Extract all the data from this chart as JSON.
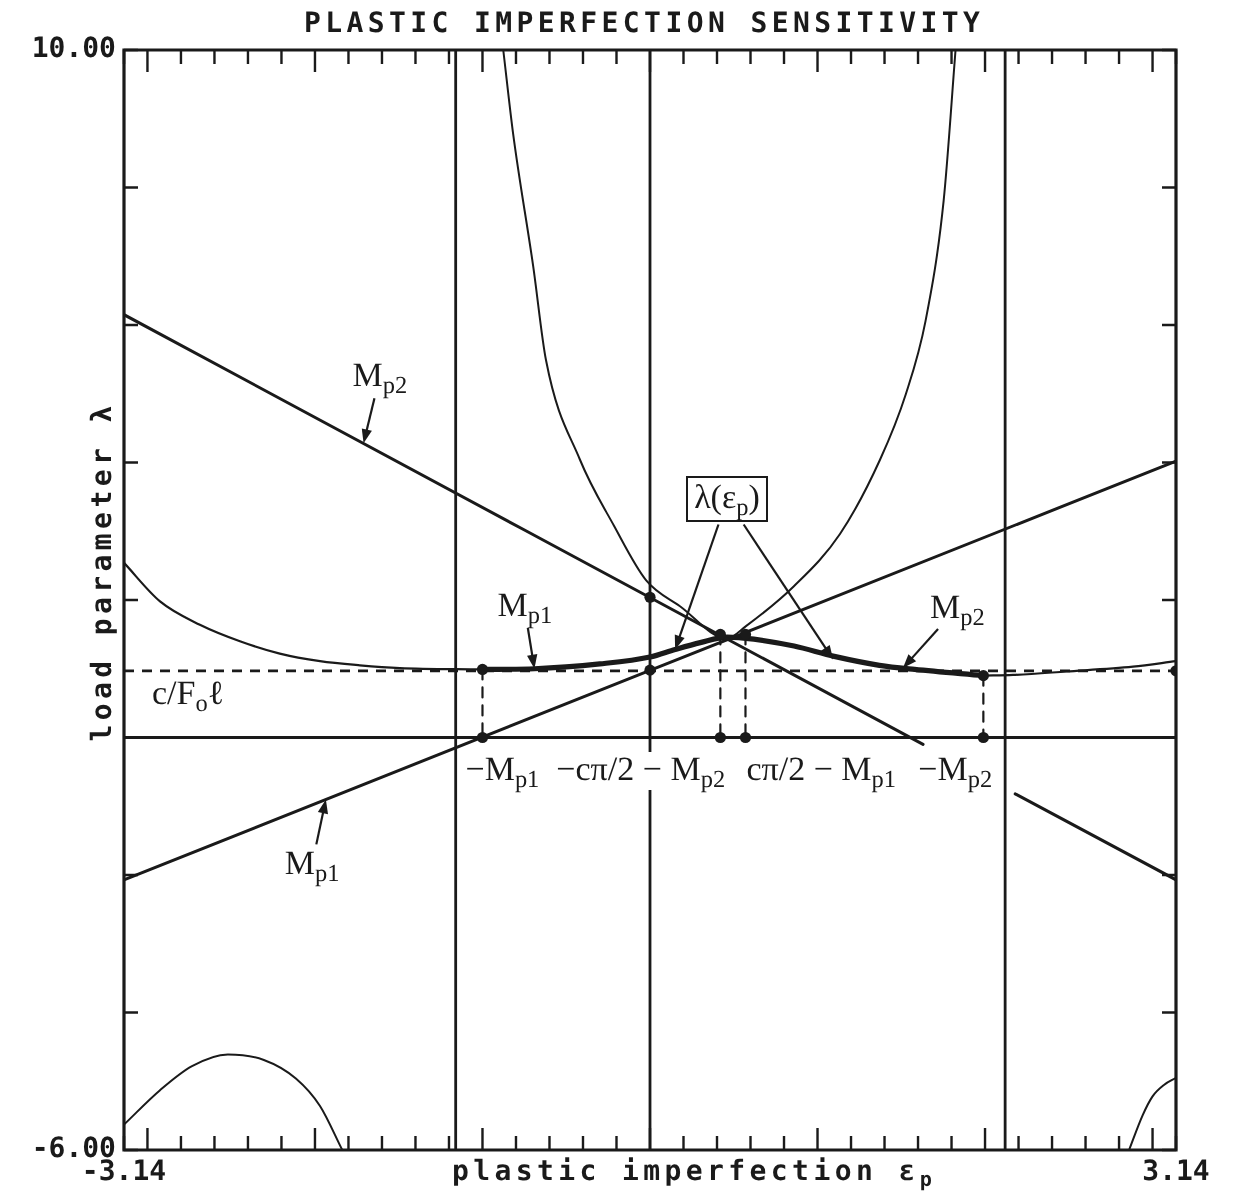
{
  "chart_data": {
    "type": "line",
    "title": "PLASTIC IMPERFECTION SENSITIVITY",
    "xlabel": "plastic imperfection ε$_{p}$",
    "ylabel": "load parameter λ",
    "xlim": [
      -3.14,
      3.14
    ],
    "ylim": [
      -6,
      10
    ],
    "xticks": [
      -3.14,
      {
        "value": -3,
        "label": null
      },
      {
        "value": -2.8,
        "label": null
      },
      {
        "value": -2.6,
        "label": null
      },
      {
        "value": -2.4,
        "label": null
      },
      {
        "value": -2.2,
        "label": null
      },
      {
        "value": -2,
        "label": null
      },
      {
        "value": -1.8,
        "label": null
      },
      {
        "value": -1.6,
        "label": null
      },
      {
        "value": -1.4,
        "label": null
      },
      {
        "value": -1.2,
        "label": null
      },
      {
        "value": -1,
        "label": null
      },
      {
        "value": -0.8,
        "label": null
      },
      {
        "value": -0.6,
        "label": null
      },
      {
        "value": -0.4,
        "label": null
      },
      {
        "value": -0.2,
        "label": null
      },
      {
        "value": 0,
        "label": null
      },
      {
        "value": 0.2,
        "label": null
      },
      {
        "value": 0.4,
        "label": null
      },
      {
        "value": 0.6,
        "label": null
      },
      {
        "value": 0.8,
        "label": null
      },
      {
        "value": 1,
        "label": null
      },
      {
        "value": 1.2,
        "label": null
      },
      {
        "value": 1.4,
        "label": null
      },
      {
        "value": 1.6,
        "label": null
      },
      {
        "value": 1.8,
        "label": null
      },
      {
        "value": 2,
        "label": null
      },
      {
        "value": 2.2,
        "label": null
      },
      {
        "value": 2.4,
        "label": null
      },
      {
        "value": 2.6,
        "label": null
      },
      {
        "value": 2.8,
        "label": null
      },
      {
        "value": 3,
        "label": null
      },
      3.14
    ],
    "yticks": [
      {
        "value": -6,
        "label": "-6.00"
      },
      {
        "value": -4,
        "label": null
      },
      {
        "value": -2,
        "label": null
      },
      {
        "value": 0,
        "label": null
      },
      {
        "value": 2,
        "label": null
      },
      {
        "value": 4,
        "label": null
      },
      {
        "value": 6,
        "label": null
      },
      {
        "value": 8,
        "label": null
      },
      {
        "value": 10,
        "label": "10.00"
      }
    ],
    "marker": "none",
    "series": [
      {
        "color": "#1a1a1a",
        "x": [
          -3.14,
          1.63
        ],
        "values": [
          6.15,
          -0.1
        ]
      },
      {
        "color": "#1a1a1a",
        "x": [
          2.18,
          3.14
        ],
        "values": [
          -0.82,
          -2.07
        ]
      },
      {
        "color": "#1a1a1a",
        "x": [
          -3.14,
          3.14
        ],
        "values": [
          -2.07,
          4.02
        ]
      },
      {
        "color": "#1a1a1a",
        "x": [
          -3.14,
          -2.925,
          -2.734,
          -2.52,
          -2.305,
          -2.114,
          -1.97,
          -1.837
        ],
        "values": [
          -5.63,
          -5.13,
          -4.78,
          -4.61,
          -4.69,
          -4.96,
          -5.36,
          -6
        ]
      },
      {
        "color": "#1a1a1a",
        "x": [
          -0.876,
          -0.817,
          -0.697,
          -0.621,
          -0.418,
          -0.215,
          -0.024,
          0.179,
          0.46,
          0.573,
          0.859,
          1.134,
          1.373,
          1.528,
          1.645,
          1.753,
          1.824
        ],
        "values": [
          10,
          8.78,
          6.85,
          5.49,
          4.04,
          3.08,
          2.29,
          1.91,
          1.44,
          1.62,
          2.2,
          2.96,
          4.04,
          5.0,
          6.06,
          7.81,
          10
        ]
      },
      {
        "color": "#1a1a1a",
        "x": [
          2.86,
          2.94,
          3.0,
          3.07,
          3.14
        ],
        "values": [
          -6,
          -5.5,
          -5.22,
          -5.05,
          -4.95
        ]
      },
      {
        "color": "#1a1a1a",
        "x": [
          -3.14,
          -2.925,
          -2.687,
          -2.448,
          -2.21,
          -1.97,
          -1.732,
          -1.493,
          -1.0
        ],
        "values": [
          2.54,
          1.98,
          1.64,
          1.4,
          1.22,
          1.11,
          1.05,
          1.01,
          0.99
        ]
      },
      {
        "color": "#1a1a1a",
        "x": [
          -1.0,
          -0.69,
          -0.3,
          0.0,
          0.15,
          0.3,
          0.46,
          0.62,
          0.86,
          1.1,
          1.37,
          1.58,
          1.99
        ],
        "values": [
          0.99,
          1.0,
          1.07,
          1.17,
          1.28,
          1.38,
          1.46,
          1.43,
          1.33,
          1.18,
          1.05,
          0.99,
          0.9
        ]
      },
      {
        "color": "#1a1a1a",
        "x": [
          1.99,
          2.167,
          2.484,
          2.883,
          3.14
        ],
        "values": [
          0.9,
          0.91,
          0.96,
          1.03,
          1.11
        ]
      },
      {
        "color": "#1a1a1a",
        "line_style": "dashed",
        "x": [
          -1.0,
          -1.0
        ],
        "values": [
          0.99,
          0
        ]
      },
      {
        "color": "#1a1a1a",
        "line_style": "dashed",
        "x": [
          0.42,
          0.42
        ],
        "values": [
          1.5,
          0
        ]
      },
      {
        "color": "#1a1a1a",
        "line_style": "dashed",
        "x": [
          0.57,
          0.57
        ],
        "values": [
          1.5,
          0
        ]
      },
      {
        "color": "#1a1a1a",
        "line_style": "dashed",
        "x": [
          1.99,
          1.99
        ],
        "values": [
          0.9,
          0
        ]
      },
      {
        "type": "scatter",
        "color": "#1a1a1a",
        "marker": "circle",
        "x": [
          -1.0,
          -1.0,
          0,
          0,
          0.42,
          0.57,
          0.42,
          0.57,
          1.99,
          1.99,
          3.14
        ],
        "values": [
          0.99,
          0,
          2.04,
          0.98,
          1.5,
          1.5,
          0,
          0,
          0.9,
          0,
          0.97
        ]
      }
    ],
    "ref_lines": [
      {
        "axis": "x",
        "value": -1.16
      },
      {
        "axis": "x",
        "value": 0
      },
      {
        "axis": "x",
        "value": 2.12
      },
      {
        "axis": "y",
        "value": 0
      },
      {
        "axis": "y",
        "value": 0.97,
        "label": "c/F$_{o}$ℓ",
        "line_style": "dashed"
      }
    ],
    "annotations": [
      {
        "text": "M$_{p2}$",
        "x": -1.71,
        "y": 4.28
      },
      {
        "text": "M$_{p1}$",
        "x": -1.935,
        "y": -0.9
      },
      {
        "text": "M$_{p1}$",
        "x": -0.69,
        "y": 1.0
      },
      {
        "text": "M$_{p2}$",
        "x": 1.51,
        "y": 1.01
      },
      {
        "text": "λ(ε$_{p}$)",
        "x": 0.15,
        "y": 1.28
      },
      {
        "text": "−M$_{p1}$",
        "x": -1.0,
        "y": 0
      },
      {
        "text": "−cπ/2 − M$_{p2}$",
        "x": 0.42,
        "y": 0
      },
      {
        "text": "cπ/2 − M$_{p1}$",
        "x": 0.57,
        "y": 0
      },
      {
        "text": "−M$_{p2}$",
        "x": 1.99,
        "y": 0
      }
    ]
  }
}
